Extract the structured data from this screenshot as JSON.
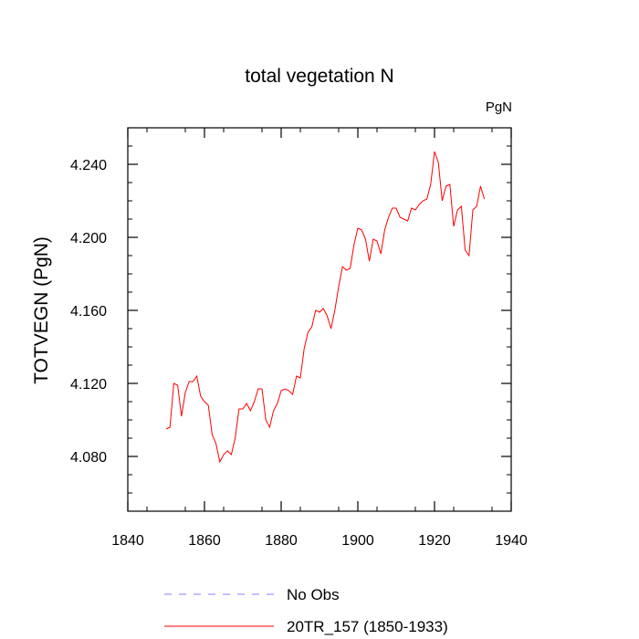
{
  "chart_data": {
    "type": "line",
    "title": "total vegetation N",
    "units_label": "PgN",
    "xlabel": "",
    "ylabel": "TOTVEGN  (PgN)",
    "xlim": [
      1840,
      1940
    ],
    "ylim": [
      4.05,
      4.26
    ],
    "x_ticks": [
      1840,
      1860,
      1880,
      1900,
      1920,
      1940
    ],
    "x_tick_labels": [
      "1840",
      "1860",
      "1880",
      "1900",
      "1920",
      "1940"
    ],
    "y_ticks": [
      4.08,
      4.12,
      4.16,
      4.2,
      4.24
    ],
    "y_tick_labels": [
      "4.080",
      "4.120",
      "4.160",
      "4.200",
      "4.240"
    ],
    "legend": [
      {
        "label": "No Obs",
        "color": "#8080ff",
        "style": "dashed"
      },
      {
        "label": "20TR_157 (1850-1933)",
        "color": "#ff0000",
        "style": "solid"
      }
    ],
    "series": [
      {
        "name": "20TR_157 (1850-1933)",
        "color": "#ff0000",
        "x": [
          1850,
          1851,
          1852,
          1853,
          1854,
          1855,
          1856,
          1857,
          1858,
          1859,
          1860,
          1861,
          1862,
          1863,
          1864,
          1865,
          1866,
          1867,
          1868,
          1869,
          1870,
          1871,
          1872,
          1873,
          1874,
          1875,
          1876,
          1877,
          1878,
          1879,
          1880,
          1881,
          1882,
          1883,
          1884,
          1885,
          1886,
          1887,
          1888,
          1889,
          1890,
          1891,
          1892,
          1893,
          1894,
          1895,
          1896,
          1897,
          1898,
          1899,
          1900,
          1901,
          1902,
          1903,
          1904,
          1905,
          1906,
          1907,
          1908,
          1909,
          1910,
          1911,
          1912,
          1913,
          1914,
          1915,
          1916,
          1917,
          1918,
          1919,
          1920,
          1921,
          1922,
          1923,
          1924,
          1925,
          1926,
          1927,
          1928,
          1929,
          1930,
          1931,
          1932,
          1933
        ],
        "values": [
          4.095,
          4.096,
          4.12,
          4.119,
          4.102,
          4.115,
          4.121,
          4.121,
          4.124,
          4.113,
          4.11,
          4.108,
          4.092,
          4.087,
          4.077,
          4.081,
          4.083,
          4.081,
          4.09,
          4.106,
          4.106,
          4.109,
          4.105,
          4.11,
          4.117,
          4.117,
          4.1,
          4.096,
          4.105,
          4.109,
          4.116,
          4.117,
          4.116,
          4.114,
          4.124,
          4.123,
          4.139,
          4.148,
          4.151,
          4.16,
          4.159,
          4.161,
          4.157,
          4.15,
          4.16,
          4.173,
          4.184,
          4.182,
          4.183,
          4.196,
          4.205,
          4.204,
          4.199,
          4.187,
          4.199,
          4.198,
          4.191,
          4.204,
          4.211,
          4.216,
          4.216,
          4.211,
          4.21,
          4.209,
          4.216,
          4.215,
          4.218,
          4.22,
          4.221,
          4.229,
          4.247,
          4.241,
          4.22,
          4.228,
          4.229,
          4.206,
          4.215,
          4.217,
          4.193,
          4.19,
          4.215,
          4.217,
          4.228,
          4.221
        ]
      }
    ]
  }
}
